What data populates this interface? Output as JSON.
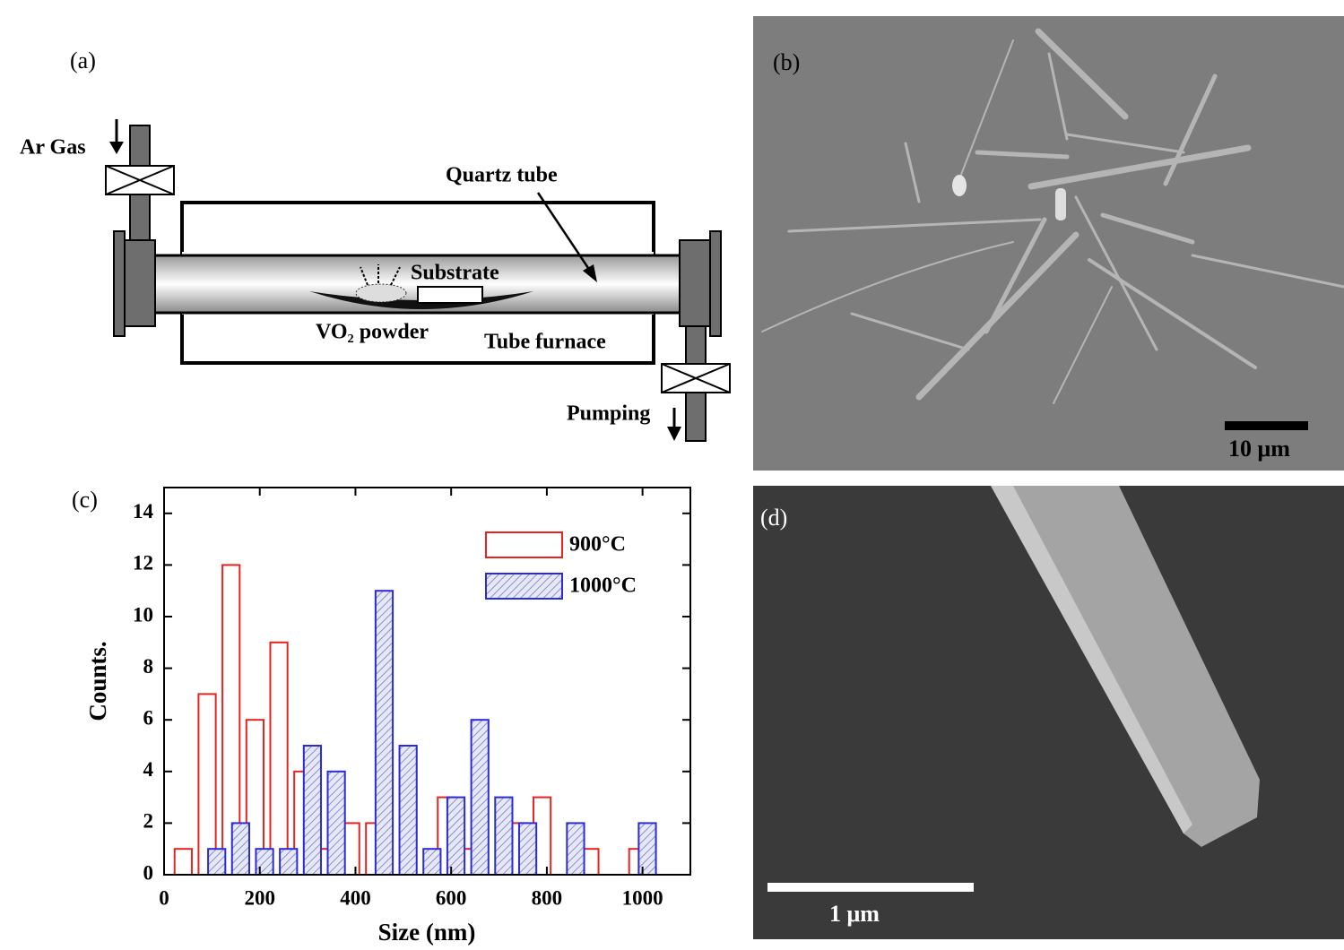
{
  "panel_a": {
    "label": "(a)",
    "ar_gas": "Ar Gas",
    "quartz_tube": "Quartz tube",
    "substrate": "Substrate",
    "powder": "VO₂ powder",
    "furnace": "Tube furnace",
    "pumping": "Pumping"
  },
  "panel_b": {
    "label": "(b)",
    "scale_bar": "10 μm"
  },
  "panel_c": {
    "label": "(c)"
  },
  "panel_d": {
    "label": "(d)",
    "scale_bar": "1 μm"
  },
  "chart_data": {
    "type": "bar",
    "x_label": "Size (nm)",
    "y_label": "Counts.",
    "x": [
      50,
      100,
      150,
      200,
      250,
      300,
      350,
      400,
      450,
      500,
      550,
      600,
      650,
      700,
      750,
      800,
      850,
      900,
      950,
      1000
    ],
    "series": [
      {
        "name": "900°C",
        "color": "#e8231f",
        "values": [
          1,
          7,
          12,
          6,
          9,
          4,
          1,
          2,
          2,
          null,
          null,
          3,
          1,
          null,
          2,
          3,
          null,
          1,
          null,
          1
        ]
      },
      {
        "name": "1000°C",
        "color": "#2b2bd9",
        "values": [
          null,
          1,
          2,
          1,
          1,
          5,
          4,
          null,
          11,
          5,
          1,
          3,
          6,
          3,
          2,
          null,
          2,
          null,
          null,
          2
        ]
      }
    ],
    "xlim": [
      0,
      1100
    ],
    "ylim": [
      0,
      15
    ],
    "xticks": [
      0,
      200,
      400,
      600,
      800,
      1000
    ],
    "yticks": [
      0,
      2,
      4,
      6,
      8,
      10,
      12,
      14
    ],
    "legend": "upper right"
  }
}
